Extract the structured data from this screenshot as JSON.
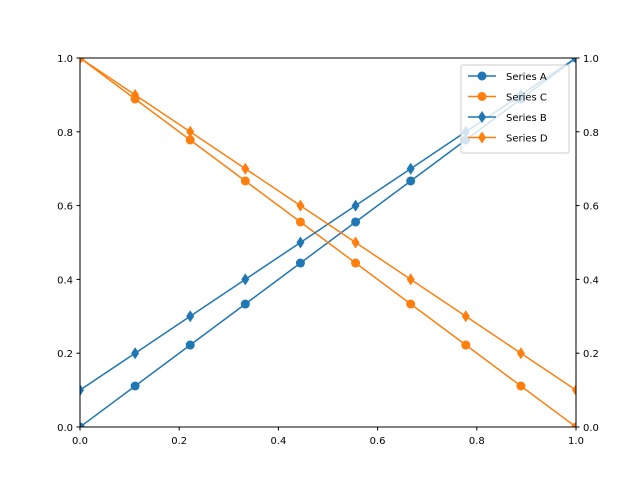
{
  "chart_data": {
    "type": "line",
    "title": "",
    "xlabel": "",
    "ylabel": "",
    "xlim": [
      0,
      1
    ],
    "ylim": [
      0,
      1
    ],
    "y2lim": [
      0,
      1
    ],
    "grid": false,
    "legend_position": "top-right",
    "x_ticks": [
      "0.0",
      "0.2",
      "0.4",
      "0.6",
      "0.8",
      "1.0"
    ],
    "y_ticks": [
      "0.0",
      "0.2",
      "0.4",
      "0.6",
      "0.8",
      "1.0"
    ],
    "y2_ticks": [
      "0.0",
      "0.2",
      "0.4",
      "0.6",
      "0.8",
      "1.0"
    ],
    "series": [
      {
        "name": "Series A",
        "axis": "left",
        "color": "#1f77b4",
        "marker": "circle",
        "x": [
          0,
          0.1111,
          0.2222,
          0.3333,
          0.4444,
          0.5556,
          0.6667,
          0.7778,
          0.8889,
          1.0
        ],
        "y": [
          0,
          0.1111,
          0.2222,
          0.3333,
          0.4444,
          0.5556,
          0.6667,
          0.7778,
          0.8889,
          1.0
        ]
      },
      {
        "name": "Series C",
        "axis": "left",
        "color": "#ff7f0e",
        "marker": "circle",
        "x": [
          0,
          0.1111,
          0.2222,
          0.3333,
          0.4444,
          0.5556,
          0.6667,
          0.7778,
          0.8889,
          1.0
        ],
        "y": [
          1.0,
          0.8889,
          0.7778,
          0.6667,
          0.5556,
          0.4444,
          0.3333,
          0.2222,
          0.1111,
          0
        ]
      },
      {
        "name": "Series B",
        "axis": "right",
        "color": "#1f77b4",
        "marker": "diamond",
        "x": [
          0,
          0.1111,
          0.2222,
          0.3333,
          0.4444,
          0.5556,
          0.6667,
          0.7778,
          0.8889,
          1.0
        ],
        "y": [
          0.1,
          0.2,
          0.3,
          0.4,
          0.5,
          0.6,
          0.7,
          0.8,
          0.9,
          1.0
        ]
      },
      {
        "name": "Series D",
        "axis": "right",
        "color": "#ff7f0e",
        "marker": "diamond",
        "x": [
          0,
          0.1111,
          0.2222,
          0.3333,
          0.4444,
          0.5556,
          0.6667,
          0.7778,
          0.8889,
          1.0
        ],
        "y": [
          1.0,
          0.9,
          0.8,
          0.7,
          0.6,
          0.5,
          0.4,
          0.3,
          0.2,
          0.1
        ]
      }
    ]
  }
}
